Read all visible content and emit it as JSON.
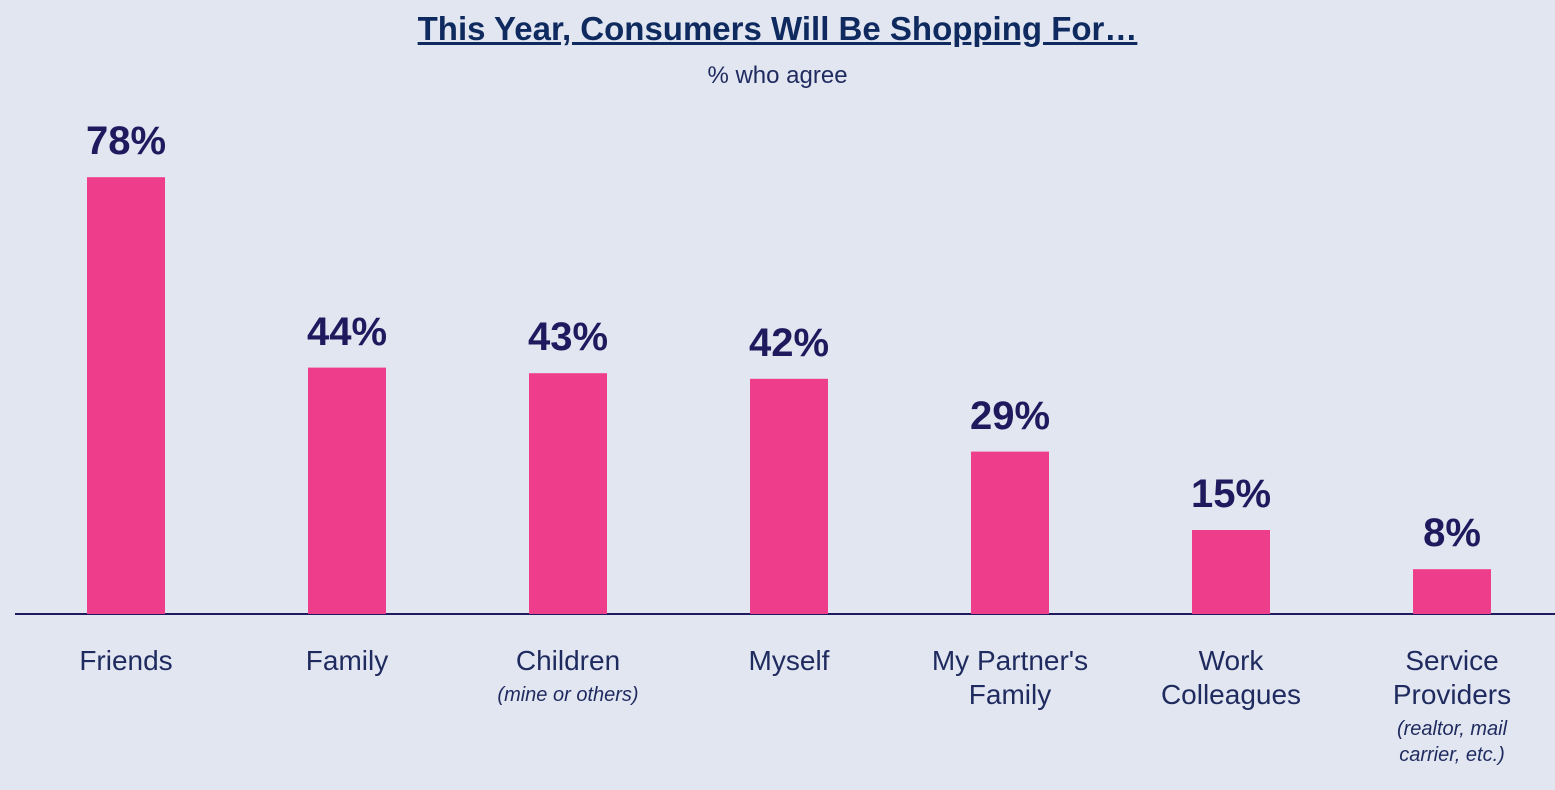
{
  "chart_data": {
    "type": "bar",
    "title": "This Year, Consumers Will Be Shopping For…",
    "subtitle": "% who agree",
    "categories": [
      "Friends",
      "Family",
      "Children",
      "Myself",
      "My Partner's Family",
      "Work Colleagues",
      "Service Providers"
    ],
    "category_notes": [
      null,
      null,
      "(mine or others)",
      null,
      null,
      null,
      "(realtor, mail carrier, etc.)"
    ],
    "values": [
      78,
      44,
      43,
      42,
      29,
      15,
      8
    ],
    "value_labels": [
      "78%",
      "44%",
      "43%",
      "42%",
      "29%",
      "15%",
      "8%"
    ],
    "color": "#ee3d8b"
  }
}
